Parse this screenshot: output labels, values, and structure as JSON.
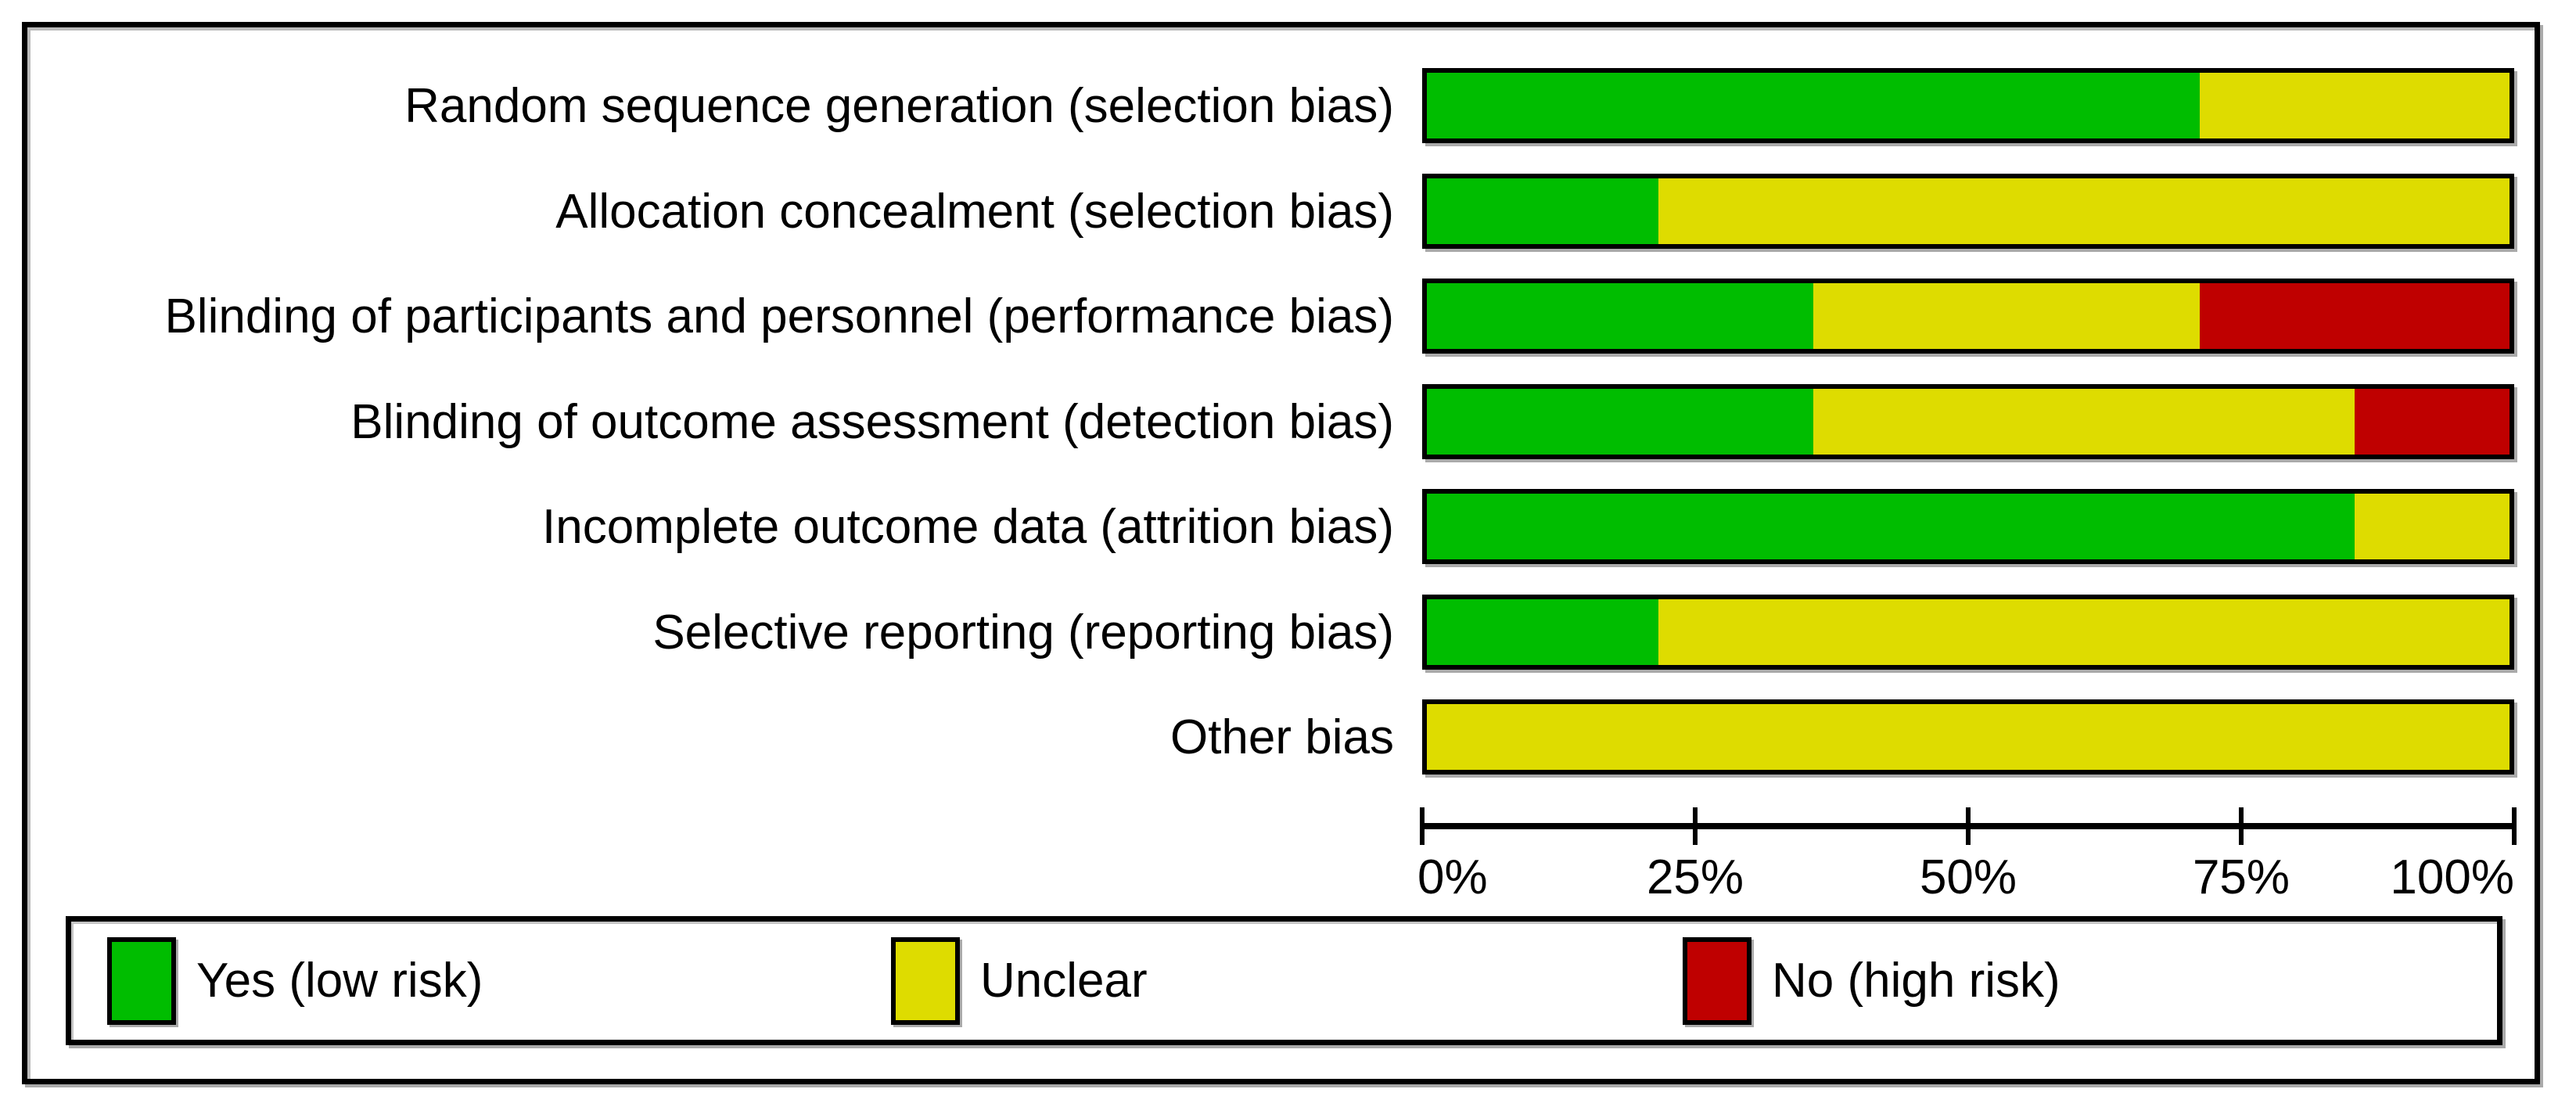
{
  "figure": {
    "background": "#ffffff",
    "frame_border_color": "#000000",
    "text_color": "#000000"
  },
  "chart_data": {
    "type": "bar",
    "orientation": "horizontal-stacked",
    "title": "",
    "xlabel": "",
    "ylabel": "",
    "xlim": [
      0,
      100
    ],
    "grid": false,
    "legend_position": "bottom",
    "categories": [
      "Random sequence generation (selection bias)",
      "Allocation concealment (selection bias)",
      "Blinding of participants and personnel (performance bias)",
      "Blinding of outcome assessment (detection bias)",
      "Incomplete outcome data (attrition bias)",
      "Selective reporting (reporting bias)",
      "Other bias"
    ],
    "series": [
      {
        "key": "low-risk",
        "name": "Yes (low risk)",
        "color": "#00bd00",
        "values": [
          71.4,
          21.4,
          35.7,
          35.7,
          85.7,
          21.4,
          0
        ]
      },
      {
        "key": "unclear",
        "name": "Unclear",
        "color": "#dedc00",
        "values": [
          28.6,
          78.6,
          35.7,
          50.0,
          14.3,
          78.6,
          100
        ]
      },
      {
        "key": "high-risk",
        "name": "No (high risk)",
        "color": "#bf0000",
        "values": [
          0,
          0,
          28.6,
          14.3,
          0,
          0,
          0
        ]
      }
    ],
    "x_ticks": [
      "0%",
      "25%",
      "50%",
      "75%",
      "100%"
    ]
  },
  "legend": {
    "items": [
      {
        "label": "Yes (low risk)",
        "color": "#00bd00"
      },
      {
        "label": "Unclear",
        "color": "#dedc00"
      },
      {
        "label": "No (high risk)",
        "color": "#bf0000"
      }
    ]
  }
}
